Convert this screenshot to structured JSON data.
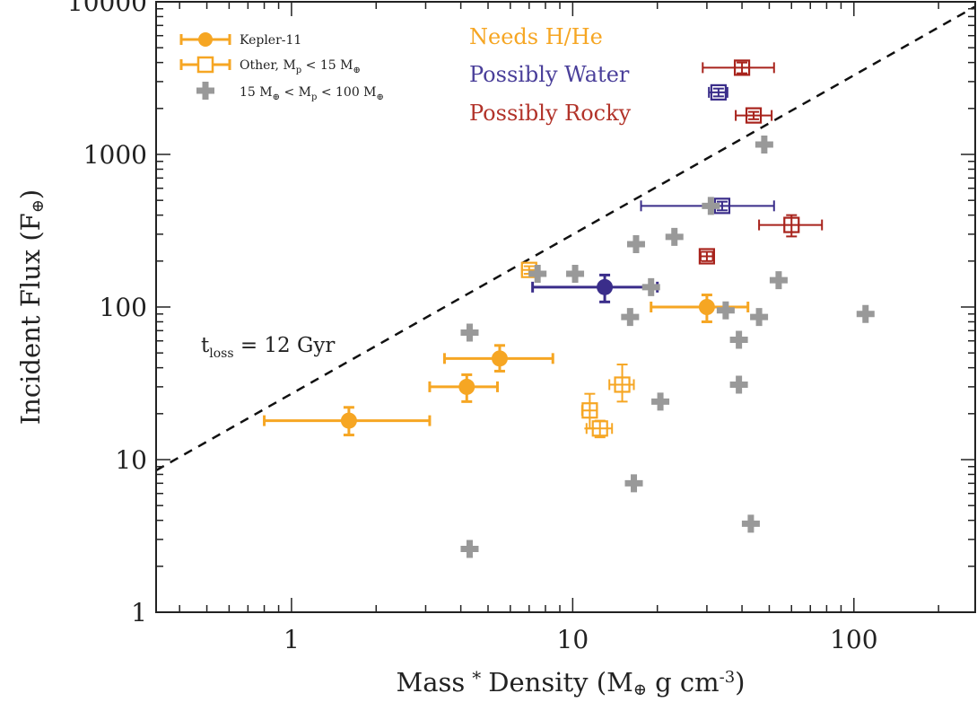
{
  "chart_data": {
    "type": "scatter",
    "xlabel": "Mass",
    "xlabel_star": "*",
    "xlabel_rest": "Density (M",
    "xlabel_sym": "⊕",
    "xlabel_unit": " g cm",
    "xlabel_exp": "-3",
    "xlabel_close": ")",
    "ylabel": "Incident Flux (F",
    "ylabel_sym": "⊕",
    "ylabel_close": ")",
    "x_scale": "log",
    "y_scale": "log",
    "xlim": [
      0.33,
      270
    ],
    "ylim": [
      1,
      10000
    ],
    "x_ticks": [
      {
        "value": 1,
        "label": "1"
      },
      {
        "value": 10,
        "label": "10"
      },
      {
        "value": 100,
        "label": "100"
      }
    ],
    "y_ticks": [
      {
        "value": 1,
        "label": "1"
      },
      {
        "value": 10,
        "label": "10"
      },
      {
        "value": 100,
        "label": "100"
      },
      {
        "value": 1000,
        "label": "1000"
      },
      {
        "value": 10000,
        "label": "10000"
      }
    ],
    "legend": {
      "position": "top-left",
      "entries": [
        {
          "key": "kepler11",
          "text": "Kepler-11"
        },
        {
          "key": "other",
          "text": "Other, M",
          "sub": "p",
          "text2": " < 15 M",
          "sub2": "⊕"
        },
        {
          "key": "mid",
          "text": "15 M",
          "sub": "⊕",
          "text2": " < M",
          "sub2": "p",
          "text3": " < 100 M",
          "sub3": "⊕"
        }
      ]
    },
    "color_legend": [
      {
        "text": "Needs H/He",
        "color": "#f6a623"
      },
      {
        "text": "Possibly Water",
        "color": "#4a3f9a"
      },
      {
        "text": "Possibly Rocky",
        "color": "#b2332a"
      }
    ],
    "annotation": {
      "t": "t",
      "sub": "loss",
      "rest": " = 12 Gyr",
      "x": 0.4,
      "y": 60
    },
    "dashed_line": {
      "x": [
        0.33,
        270
      ],
      "y": [
        8.5,
        9300
      ]
    },
    "colors": {
      "orange": "#f6a623",
      "purple": "#3a2d8a",
      "red": "#a8231c",
      "gray": "#999999"
    },
    "series": [
      {
        "name": "Kepler-11",
        "marker": "filled-circle",
        "points": [
          {
            "x": 1.6,
            "y": 18,
            "xmin": 0.8,
            "xmax": 3.1,
            "ymin": 14.5,
            "ymax": 22,
            "color": "orange"
          },
          {
            "x": 4.2,
            "y": 30,
            "xmin": 3.1,
            "xmax": 5.4,
            "ymin": 24,
            "ymax": 36,
            "color": "orange"
          },
          {
            "x": 5.5,
            "y": 46,
            "xmin": 3.5,
            "xmax": 8.5,
            "ymin": 38,
            "ymax": 56,
            "color": "orange"
          },
          {
            "x": 13,
            "y": 135,
            "xmin": 7.2,
            "xmax": 20,
            "ymin": 108,
            "ymax": 162,
            "color": "purple"
          },
          {
            "x": 30,
            "y": 100,
            "xmin": 19,
            "xmax": 42,
            "ymin": 80,
            "ymax": 120,
            "color": "orange"
          }
        ]
      },
      {
        "name": "Other, Mp < 15 M⊕",
        "marker": "open-square",
        "points": [
          {
            "x": 7,
            "y": 175,
            "xmin": 6.6,
            "xmax": 7.4,
            "ymin": 165,
            "ymax": 185,
            "color": "orange"
          },
          {
            "x": 11.5,
            "y": 21,
            "xmin": 10.8,
            "xmax": 12.2,
            "ymin": 16,
            "ymax": 27,
            "color": "orange"
          },
          {
            "x": 12.5,
            "y": 16,
            "xmin": 11.2,
            "xmax": 13.8,
            "ymin": 14,
            "ymax": 18,
            "color": "orange"
          },
          {
            "x": 15,
            "y": 31,
            "xmin": 13.5,
            "xmax": 16.5,
            "ymin": 24,
            "ymax": 42,
            "color": "orange"
          },
          {
            "x": 33,
            "y": 2550,
            "xmin": 30.5,
            "xmax": 35.5,
            "ymin": 2400,
            "ymax": 2700,
            "color": "purple"
          },
          {
            "x": 34,
            "y": 460,
            "xmin": 17.5,
            "xmax": 52,
            "ymin": 430,
            "ymax": 490,
            "color": "purple"
          },
          {
            "x": 40,
            "y": 3700,
            "xmin": 29,
            "xmax": 52,
            "ymin": 3400,
            "ymax": 4000,
            "color": "red"
          },
          {
            "x": 44,
            "y": 1800,
            "xmin": 38,
            "xmax": 51,
            "ymin": 1700,
            "ymax": 1900,
            "color": "red"
          },
          {
            "x": 30,
            "y": 215,
            "xmin": 28.5,
            "xmax": 31.5,
            "ymin": 200,
            "ymax": 230,
            "color": "red"
          },
          {
            "x": 60,
            "y": 345,
            "xmin": 46,
            "xmax": 77,
            "ymin": 290,
            "ymax": 400,
            "color": "red"
          }
        ]
      },
      {
        "name": "15 M⊕ < Mp < 100 M⊕",
        "marker": "plus",
        "points": [
          {
            "x": 4.3,
            "y": 68
          },
          {
            "x": 4.3,
            "y": 2.6
          },
          {
            "x": 7.5,
            "y": 165
          },
          {
            "x": 10.2,
            "y": 165
          },
          {
            "x": 16,
            "y": 86
          },
          {
            "x": 16.5,
            "y": 7
          },
          {
            "x": 16.8,
            "y": 258
          },
          {
            "x": 19,
            "y": 135
          },
          {
            "x": 20.5,
            "y": 24
          },
          {
            "x": 23,
            "y": 288
          },
          {
            "x": 31,
            "y": 460
          },
          {
            "x": 35,
            "y": 95
          },
          {
            "x": 39,
            "y": 61
          },
          {
            "x": 39,
            "y": 31
          },
          {
            "x": 43,
            "y": 3.8
          },
          {
            "x": 46,
            "y": 86
          },
          {
            "x": 48,
            "y": 1160
          },
          {
            "x": 54,
            "y": 150
          },
          {
            "x": 110,
            "y": 90
          }
        ]
      }
    ]
  }
}
